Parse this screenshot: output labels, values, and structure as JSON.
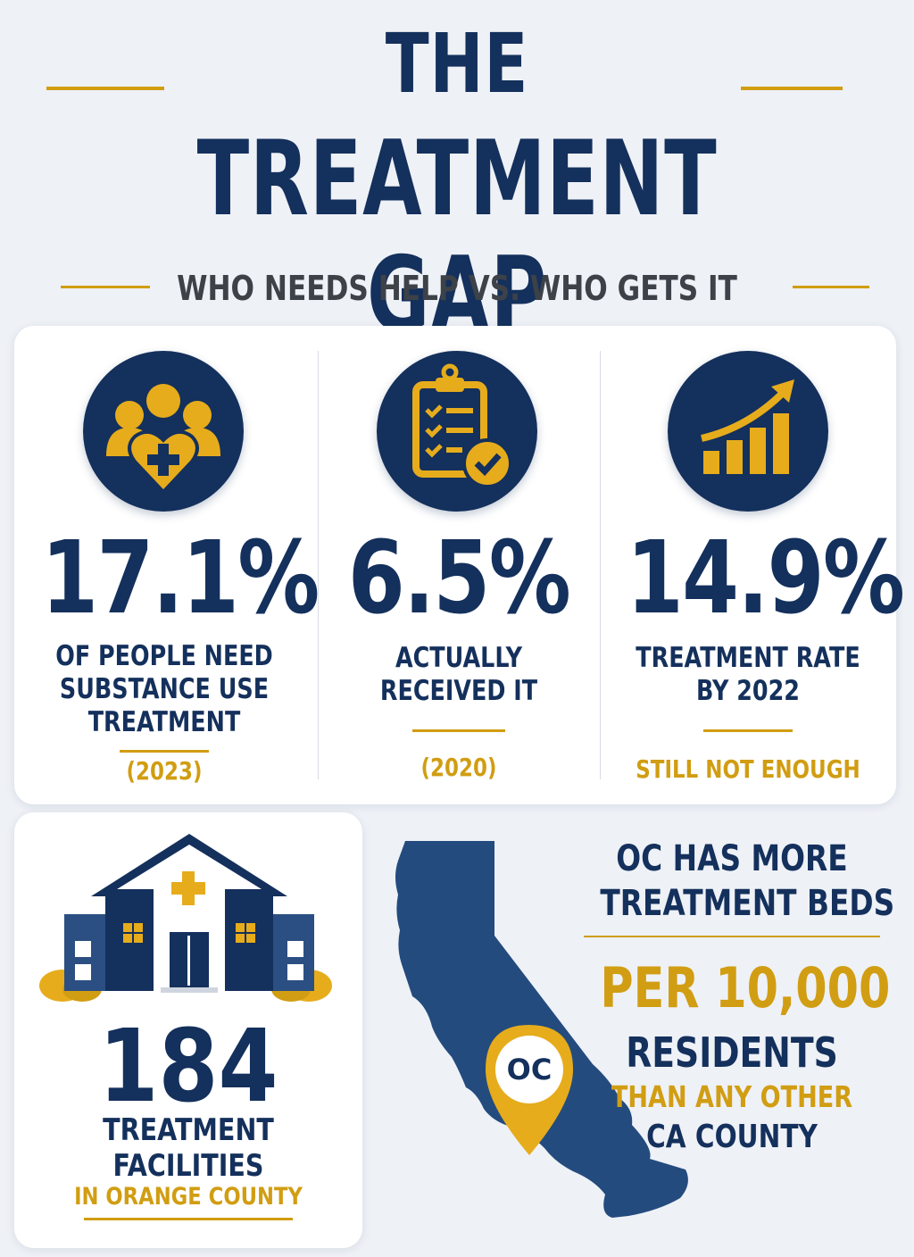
{
  "header": {
    "title_line1": "THE",
    "title_line2": "TREATMENT GAP",
    "subtitle": "WHO NEEDS HELP VS. WHO GETS IT"
  },
  "stats": [
    {
      "icon": "people-heart-icon",
      "value": "17.1%",
      "description": [
        "OF PEOPLE NEED",
        "SUBSTANCE USE",
        "TREATMENT"
      ],
      "note": "(2023)"
    },
    {
      "icon": "clipboard-check-icon",
      "value": "6.5%",
      "description": [
        "ACTUALLY",
        "RECEIVED IT"
      ],
      "note": "(2020)"
    },
    {
      "icon": "growth-chart-icon",
      "value": "14.9%",
      "description": [
        "TREATMENT RATE",
        "BY 2022"
      ],
      "note": "STILL NOT ENOUGH"
    }
  ],
  "facilities": {
    "icon": "hospital-building-icon",
    "count": "184",
    "label_line1": "TREATMENT",
    "label_line2": "FACILITIES",
    "location": "IN ORANGE COUNTY"
  },
  "beds": {
    "map_icon": "california-map-icon",
    "pin_label": "OC",
    "line1": "OC HAS MORE",
    "line2": "TREATMENT BEDS",
    "highlight": "PER 10,000",
    "line3": "RESIDENTS",
    "line4": "THAN ANY OTHER",
    "line5": "CA COUNTY"
  },
  "colors": {
    "navy": "#14305c",
    "gold": "#d19d12",
    "background": "#eef1f6"
  }
}
